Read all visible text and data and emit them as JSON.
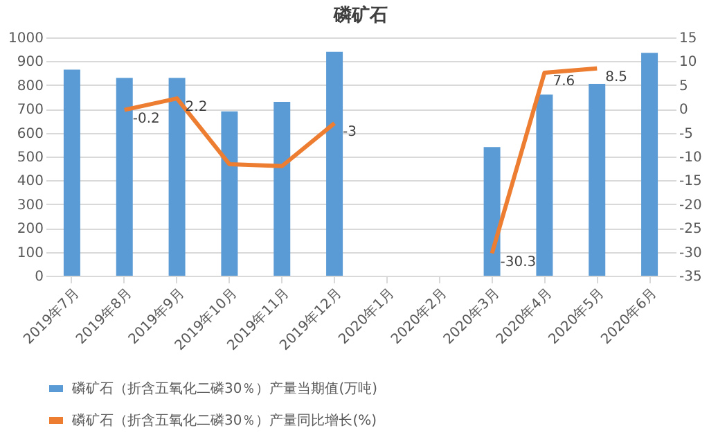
{
  "chart_data": {
    "type": "bar",
    "title": "磷矿石",
    "categories": [
      "2019年7月",
      "2019年8月",
      "2019年9月",
      "2019年10月",
      "2019年11月",
      "2019年12月",
      "2020年1月",
      "2020年2月",
      "2020年3月",
      "2020年4月",
      "2020年5月",
      "2020年6月"
    ],
    "series": [
      {
        "name": "磷矿石（折含五氧化二磷30％）产量当期值(万吨)",
        "color": "#5b9bd5",
        "values": [
          865,
          830,
          830,
          690,
          730,
          940,
          null,
          null,
          540,
          760,
          805,
          935
        ]
      },
      {
        "name": "磷矿石（折含五氧化二磷30％）产量同比增长(%)",
        "type": "line",
        "axis": "y2",
        "color": "#ed7d31",
        "values": [
          null,
          -0.2,
          2.2,
          -11.6,
          -12,
          -3,
          null,
          null,
          -30.3,
          7.6,
          8.5,
          null
        ],
        "value_labels": [
          null,
          "-0.2",
          "2.2",
          null,
          null,
          "-3",
          null,
          null,
          "-30.3",
          "7.6",
          "8.5",
          null
        ]
      }
    ],
    "ylim": [
      0,
      1000
    ],
    "yticks": [
      0,
      100,
      200,
      300,
      400,
      500,
      600,
      700,
      800,
      900,
      1000
    ],
    "y2lim": [
      -35,
      15
    ],
    "y2ticks": [
      -35,
      -30,
      -25,
      -20,
      -15,
      -10,
      -5,
      0,
      5,
      10,
      15
    ],
    "grid": "y",
    "legend": "bottom",
    "marker": "none",
    "line_style": "solid"
  }
}
